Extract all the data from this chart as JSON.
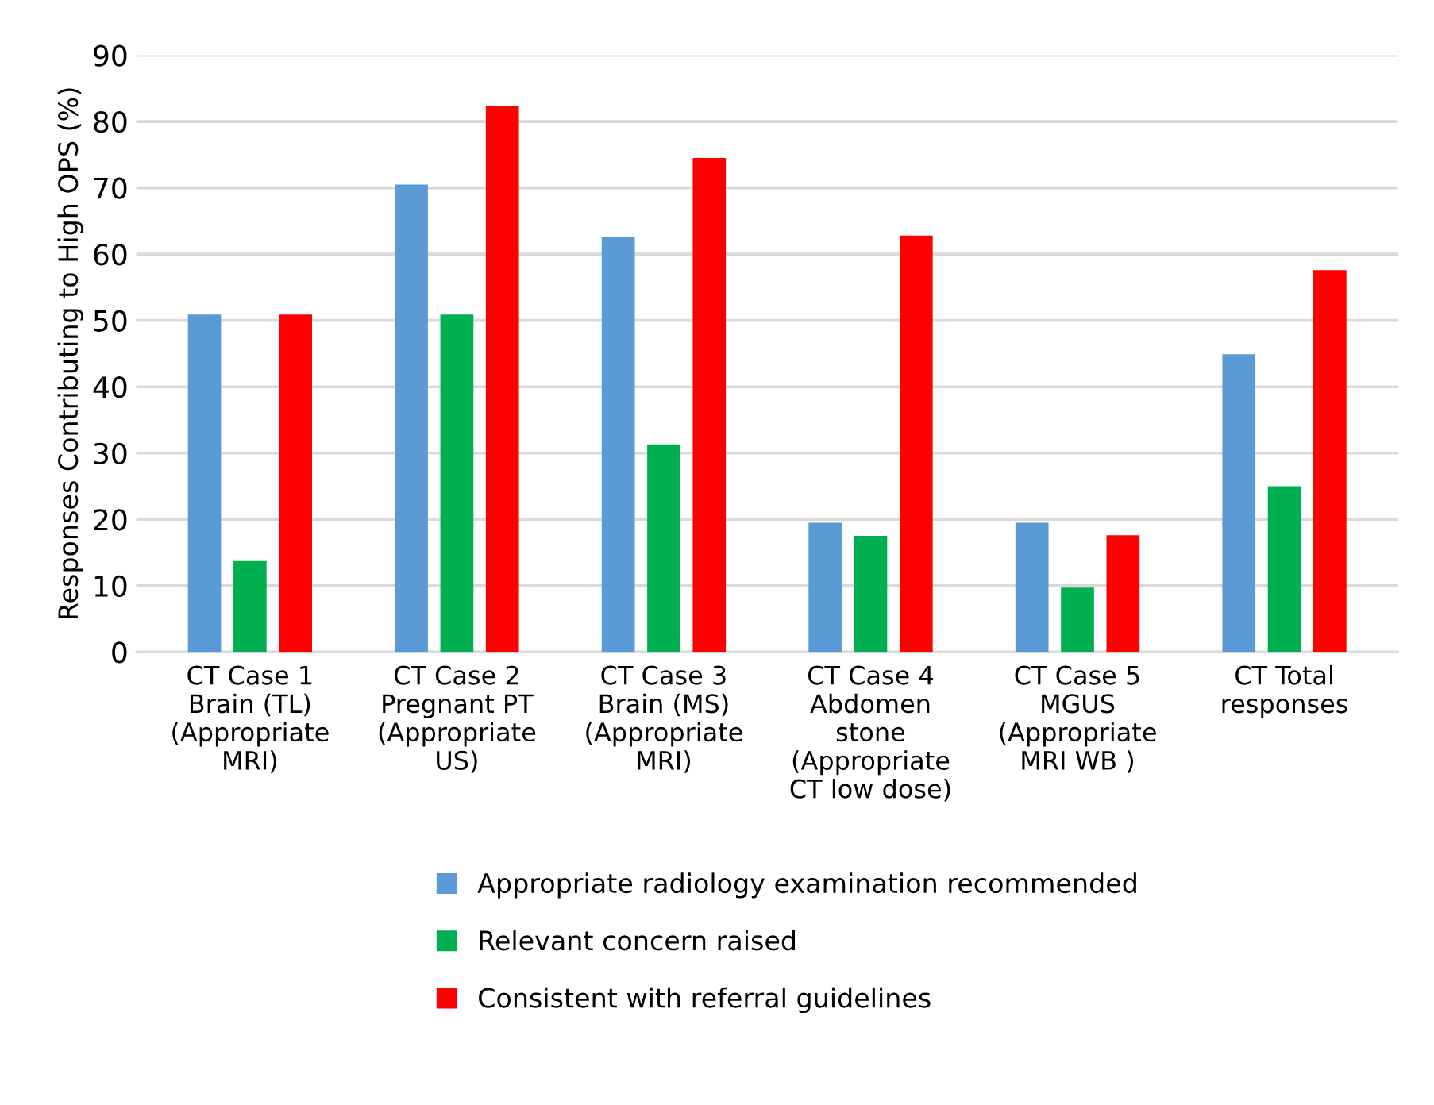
{
  "chart_data": {
    "type": "bar",
    "ylabel": "Responses Contributing to High OPS (%)",
    "categories": [
      "CT Case 1\nBrain (TL)\n(Appropriate\nMRI)",
      "CT Case 2\nPregnant PT\n(Appropriate\nUS)",
      "CT Case 3\nBrain (MS)\n(Appropriate\nMRI)",
      "CT Case 4\nAbdomen\nstone\n(Appropriate\nCT low dose)",
      "CT Case 5\nMGUS\n(Appropriate\nMRI WB )",
      "CT Total\nresponses"
    ],
    "series": [
      {
        "name": "Appropriate radiology examination recommended",
        "color": "#5b9bd5",
        "values": [
          50.9,
          70.5,
          62.6,
          19.5,
          19.5,
          44.9
        ]
      },
      {
        "name": "Relevant concern raised",
        "color": "#00b050",
        "values": [
          13.7,
          50.9,
          31.3,
          17.5,
          9.7,
          25.0
        ]
      },
      {
        "name": "Consistent with referral guidelines",
        "color": "#ff0000",
        "values": [
          50.9,
          82.3,
          74.5,
          62.8,
          17.6,
          57.6
        ]
      }
    ],
    "ylim": [
      0,
      90
    ],
    "yticks": [
      0,
      10,
      20,
      30,
      40,
      50,
      60,
      70,
      80,
      90
    ],
    "grid": "y",
    "legend": "bottom"
  }
}
